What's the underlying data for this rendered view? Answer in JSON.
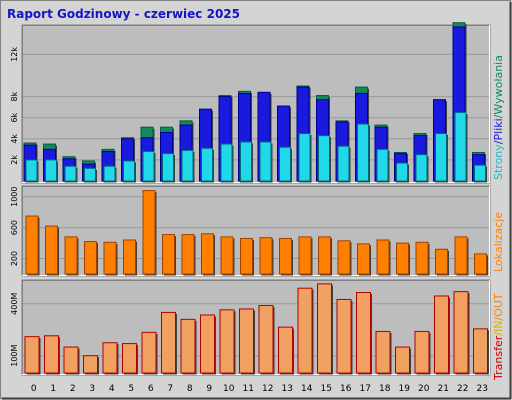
{
  "title": "Raport Godzinowy -  czerwiec 2025",
  "colors": {
    "background": "#d4d4d4",
    "panel": "#bdbdbd",
    "grid": "#9a9a9a",
    "title": "#1414c8",
    "hits": "#128a5a",
    "files": "#1a1adf",
    "pages": "#20d8e8",
    "visits": "#ff8000",
    "transfer": "#f0a060",
    "transfer_edge": "#b00000",
    "label_in": "#e0b000",
    "label_out": "#ff8000",
    "label_transfer": "#c80000"
  },
  "chart_data": [
    {
      "type": "bar",
      "panel": "top",
      "categories": [
        "0",
        "1",
        "2",
        "3",
        "4",
        "5",
        "6",
        "7",
        "8",
        "9",
        "10",
        "11",
        "12",
        "13",
        "14",
        "15",
        "16",
        "17",
        "18",
        "19",
        "20",
        "21",
        "22",
        "23"
      ],
      "y_ticks": [
        "2k",
        "4k",
        "6k",
        "8k",
        "12k"
      ],
      "y_tick_values": [
        2000,
        4000,
        6000,
        8000,
        12000
      ],
      "ylim": [
        0,
        14500
      ],
      "series": [
        {
          "name": "Wywołania",
          "values": [
            3600,
            3500,
            2300,
            1900,
            3000,
            4100,
            5100,
            5100,
            5700,
            6800,
            8100,
            8500,
            8400,
            7100,
            9000,
            8100,
            5700,
            8900,
            5300,
            2700,
            4500,
            7700,
            15000,
            2700
          ]
        },
        {
          "name": "Pliki",
          "values": [
            3400,
            3000,
            2100,
            1600,
            2800,
            4000,
            4100,
            4600,
            5300,
            6800,
            8000,
            8300,
            8400,
            7100,
            8900,
            7700,
            5600,
            8300,
            5100,
            2600,
            4300,
            7700,
            14600,
            2500
          ]
        },
        {
          "name": "Strony",
          "values": [
            2000,
            2000,
            1400,
            1200,
            1400,
            1900,
            2800,
            2600,
            2900,
            3100,
            3500,
            3700,
            3700,
            3200,
            4500,
            4300,
            3300,
            5400,
            3000,
            1700,
            2500,
            4500,
            6500,
            1500
          ]
        }
      ],
      "axis_label": [
        "Strony",
        "/",
        "Pliki",
        "/",
        "Wywołania"
      ]
    },
    {
      "type": "bar",
      "panel": "middle",
      "categories": [
        "0",
        "1",
        "2",
        "3",
        "4",
        "5",
        "6",
        "7",
        "8",
        "9",
        "10",
        "11",
        "12",
        "13",
        "14",
        "15",
        "16",
        "17",
        "18",
        "19",
        "20",
        "21",
        "22",
        "23"
      ],
      "y_ticks": [
        "200",
        "600",
        "1000"
      ],
      "y_tick_values": [
        200,
        600,
        1000
      ],
      "ylim": [
        0,
        1100
      ],
      "series": [
        {
          "name": "Lokalizacje",
          "values": [
            750,
            620,
            480,
            420,
            410,
            440,
            1080,
            510,
            510,
            520,
            480,
            460,
            470,
            460,
            480,
            480,
            430,
            390,
            440,
            400,
            410,
            320,
            480,
            260
          ]
        }
      ],
      "axis_label": [
        "Lokalizacje"
      ]
    },
    {
      "type": "bar",
      "panel": "bottom",
      "categories": [
        "0",
        "1",
        "2",
        "3",
        "4",
        "5",
        "6",
        "7",
        "8",
        "9",
        "10",
        "11",
        "12",
        "13",
        "14",
        "15",
        "16",
        "17",
        "18",
        "19",
        "20",
        "21",
        "22",
        "23"
      ],
      "y_ticks": [
        "100M",
        "400M"
      ],
      "y_tick_values": [
        100,
        400
      ],
      "ylim": [
        0,
        520
      ],
      "series": [
        {
          "name": "Transfer",
          "values": [
            210,
            215,
            150,
            100,
            175,
            170,
            235,
            350,
            310,
            335,
            365,
            370,
            390,
            265,
            490,
            515,
            425,
            465,
            240,
            150,
            240,
            445,
            470,
            255
          ]
        }
      ],
      "axis_label": [
        "Transfer",
        "/",
        "IN",
        "/",
        "OUT"
      ]
    }
  ]
}
